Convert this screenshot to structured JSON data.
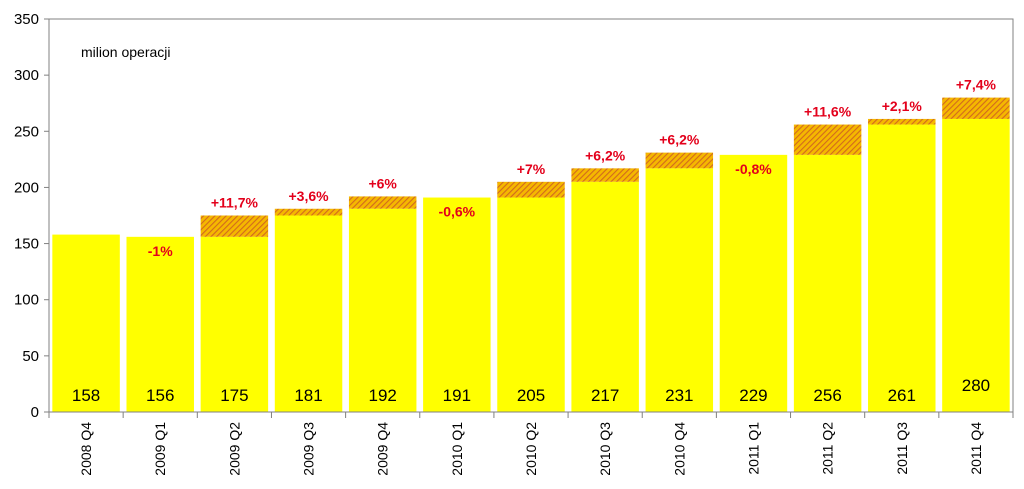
{
  "chart_data": {
    "type": "bar",
    "unit_label": "milion operacji",
    "categories": [
      "2008 Q4",
      "2009 Q1",
      "2009 Q2",
      "2009 Q3",
      "2009 Q4",
      "2010 Q1",
      "2010 Q2",
      "2010 Q3",
      "2010 Q4",
      "2011 Q1",
      "2011 Q2",
      "2011 Q3",
      "2011 Q4"
    ],
    "values": [
      158,
      156,
      175,
      181,
      192,
      191,
      205,
      217,
      231,
      229,
      256,
      261,
      280
    ],
    "value_labels": [
      "158",
      "156",
      "175",
      "181",
      "192",
      "191",
      "205",
      "217",
      "231",
      "229",
      "256",
      "261",
      "280"
    ],
    "change_labels": [
      "",
      "-1%",
      "+11,7%",
      "+3,6%",
      "+6%",
      "-0,6%",
      "+7%",
      "+6,2%",
      "+6,2%",
      "-0,8%",
      "+11,6%",
      "+2,1%",
      "+7,4%"
    ],
    "yticks": [
      0,
      50,
      100,
      150,
      200,
      250,
      300,
      350
    ],
    "ylim": [
      0,
      350
    ],
    "grid": false,
    "colors": {
      "bar": "#ffff00",
      "increase_hatch": "#e36c0a",
      "change_text": "#e3001b"
    }
  }
}
